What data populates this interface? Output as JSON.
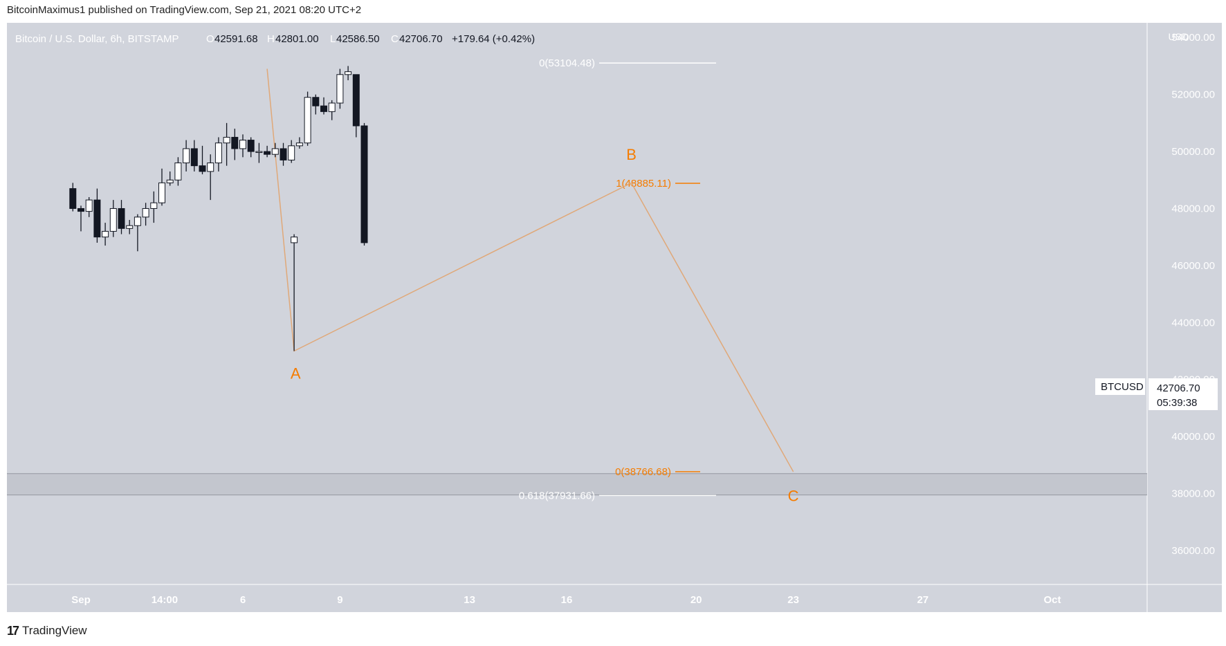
{
  "attribution": "BitcoinMaximus1 published on TradingView.com, Sep 21, 2021 08:20 UTC+2",
  "footer": {
    "logo": "17",
    "brand": "TradingView"
  },
  "colors": {
    "background": "#d1d4dc",
    "up": "#ffffff",
    "down": "#131722",
    "orange": "#f57c00",
    "fib_white": "#ffffff"
  },
  "header": {
    "symbol": "Bitcoin / U.S. Dollar, 6h, BITSTAMP",
    "o_label": "O",
    "o": "42591.68",
    "h_label": "H",
    "h": "42801.00",
    "l_label": "L",
    "l": "42586.50",
    "c_label": "C",
    "c": "42706.70",
    "change": "+179.64 (+0.42%)"
  },
  "price_axis": {
    "currency": "USD"
  },
  "last_price": {
    "symbol": "BTCUSD",
    "price": "42706.70",
    "countdown": "05:39:38"
  },
  "chart_data": {
    "type": "candlestick",
    "title": "Bitcoin / U.S. Dollar, 6h, BITSTAMP",
    "ylabel": "USD",
    "ylim": [
      36000,
      55000
    ],
    "y_ticks": [
      "36000.00",
      "38000.00",
      "40000.00",
      "42000.00",
      "44000.00",
      "46000.00",
      "48000.00",
      "50000.00",
      "52000.00",
      "54000.00"
    ],
    "xlim": [
      "2021-09-01",
      "2021-10-01"
    ],
    "x_ticks": [
      {
        "label": "Sep",
        "date": "2021-09-01"
      },
      {
        "label": "14:00",
        "date": "2021-09-03T14:00"
      },
      {
        "label": "6",
        "date": "2021-09-06"
      },
      {
        "label": "9",
        "date": "2021-09-09"
      },
      {
        "label": "13",
        "date": "2021-09-13"
      },
      {
        "label": "16",
        "date": "2021-09-16"
      },
      {
        "label": "20",
        "date": "2021-09-20"
      },
      {
        "label": "23",
        "date": "2021-09-23"
      },
      {
        "label": "27",
        "date": "2021-09-27"
      },
      {
        "label": "Oct",
        "date": "2021-10-01"
      }
    ],
    "candles": [
      [
        "2021-08-31T18:00",
        48700,
        48900,
        47900,
        48000
      ],
      [
        "2021-09-01T00:00",
        48000,
        48100,
        47200,
        47900
      ],
      [
        "2021-09-01T06:00",
        47900,
        48400,
        47700,
        48300
      ],
      [
        "2021-09-01T12:00",
        48300,
        48700,
        46800,
        47000
      ],
      [
        "2021-09-01T18:00",
        47000,
        47500,
        46700,
        47200
      ],
      [
        "2021-09-02T00:00",
        47200,
        48300,
        47000,
        48000
      ],
      [
        "2021-09-02T06:00",
        48000,
        48300,
        47100,
        47300
      ],
      [
        "2021-09-02T12:00",
        47300,
        47600,
        47100,
        47400
      ],
      [
        "2021-09-02T18:00",
        47400,
        47800,
        46500,
        47700
      ],
      [
        "2021-09-03T00:00",
        47700,
        48200,
        47400,
        48000
      ],
      [
        "2021-09-03T06:00",
        48000,
        48600,
        47500,
        48200
      ],
      [
        "2021-09-03T12:00",
        48200,
        49400,
        48100,
        48900
      ],
      [
        "2021-09-03T18:00",
        48900,
        49300,
        48800,
        49000
      ],
      [
        "2021-09-04T00:00",
        49000,
        49800,
        48800,
        49600
      ],
      [
        "2021-09-04T06:00",
        49600,
        50400,
        49300,
        50100
      ],
      [
        "2021-09-04T12:00",
        50100,
        50400,
        49300,
        49500
      ],
      [
        "2021-09-04T18:00",
        49500,
        50200,
        49200,
        49300
      ],
      [
        "2021-09-05T00:00",
        49300,
        49900,
        48300,
        49600
      ],
      [
        "2021-09-05T06:00",
        49600,
        50500,
        49300,
        50300
      ],
      [
        "2021-09-05T12:00",
        50300,
        51000,
        49500,
        50500
      ],
      [
        "2021-09-05T18:00",
        50500,
        50800,
        49700,
        50100
      ],
      [
        "2021-09-06T00:00",
        50100,
        50600,
        49800,
        50400
      ],
      [
        "2021-09-06T06:00",
        50400,
        50500,
        49800,
        50000
      ],
      [
        "2021-09-06T12:00",
        50000,
        50300,
        49600,
        50000
      ],
      [
        "2021-09-06T18:00",
        50000,
        50200,
        49800,
        49900
      ],
      [
        "2021-09-07T00:00",
        49900,
        50300,
        49800,
        50100
      ],
      [
        "2021-09-07T06:00",
        50100,
        50300,
        49500,
        49700
      ],
      [
        "2021-09-07T12:00",
        49700,
        50400,
        49600,
        50200
      ],
      [
        "2021-09-07T18:00",
        50200,
        50500,
        50100,
        50300
      ],
      [
        "2021-09-08T00:00",
        50300,
        52100,
        50200,
        51900
      ],
      [
        "2021-09-08T06:00",
        51900,
        52000,
        51300,
        51600
      ],
      [
        "2021-09-08T12:00",
        51600,
        51900,
        51300,
        51400
      ],
      [
        "2021-09-08T18:00",
        51400,
        51800,
        51100,
        51700
      ],
      [
        "2021-09-09T00:00",
        51700,
        52900,
        51500,
        52700
      ],
      [
        "2021-09-09T06:00",
        52700,
        53000,
        52500,
        52800
      ],
      [
        "2021-09-09T12:00",
        52700,
        52700,
        50500,
        50900
      ],
      [
        "2021-09-09T18:00",
        50900,
        51000,
        46700,
        46800
      ],
      [
        "2021-09-07T14:00",
        46800,
        47100,
        43000,
        47000
      ]
    ],
    "annotations": [
      {
        "text": "A",
        "x": "2021-09-07T12:00",
        "y": 43000
      },
      {
        "text": "B",
        "x": "2021-09-18",
        "y": 48885.11
      },
      {
        "text": "C",
        "x": "2021-09-23",
        "y": 38700
      }
    ],
    "fib_levels": [
      {
        "label": "0(53104.48)",
        "value": 53104.48,
        "color": "white"
      },
      {
        "label": "1(48885.11)",
        "value": 48885.11,
        "color": "orange"
      },
      {
        "label": "0(38766.68)",
        "value": 38766.68,
        "color": "orange"
      },
      {
        "label": "0.618(37931.66)",
        "value": 37931.66,
        "color": "white"
      }
    ],
    "support_zone": [
      37950,
      38700
    ]
  }
}
